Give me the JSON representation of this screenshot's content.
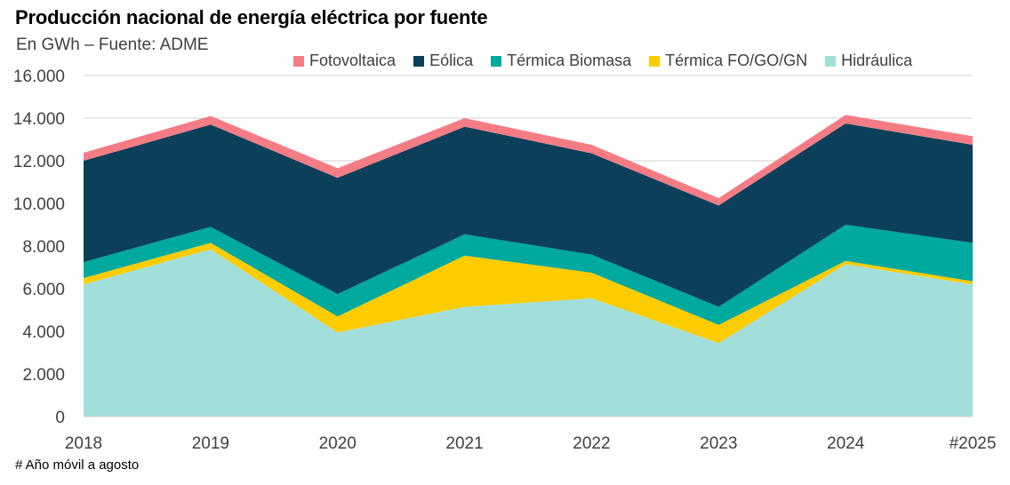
{
  "title": "Producción nacional de energía eléctrica por fuente",
  "subtitle": "En GWh – Fuente: ADME",
  "footnote": "# Año móvil a agosto",
  "chart_data": {
    "type": "area",
    "stacked": true,
    "title": "Producción nacional de energía eléctrica por fuente",
    "subtitle": "En GWh – Fuente: ADME",
    "xlabel": "",
    "ylabel": "",
    "categories": [
      "2018",
      "2019",
      "2020",
      "2021",
      "2022",
      "2023",
      "2024",
      "#2025"
    ],
    "ylim": [
      0,
      16000
    ],
    "yticks": [
      0,
      2000,
      4000,
      6000,
      8000,
      10000,
      12000,
      14000,
      16000
    ],
    "ytick_labels": [
      "0",
      "2.000",
      "4.000",
      "6.000",
      "8.000",
      "10.000",
      "12.000",
      "14.000",
      "16.000"
    ],
    "grid": "horizontal",
    "legend_position": "top-right",
    "stack_order_bottom_to_top": [
      "Hidráulica",
      "Térmica FO/GO/GN",
      "Térmica Biomasa",
      "Eólica",
      "Fotovoltaica"
    ],
    "series": [
      {
        "name": "Hidráulica",
        "color": "#A3DFDA",
        "values": [
          6200,
          7850,
          3950,
          5150,
          5550,
          3450,
          7150,
          6200
        ]
      },
      {
        "name": "Térmica FO/GO/GN",
        "color": "#FFCC00",
        "values": [
          300,
          300,
          750,
          2400,
          1200,
          850,
          150,
          150
        ]
      },
      {
        "name": "Térmica Biomasa",
        "color": "#00A99D",
        "values": [
          750,
          750,
          1050,
          1000,
          850,
          850,
          1700,
          1800
        ]
      },
      {
        "name": "Eólica",
        "color": "#0B3F5A",
        "values": [
          4750,
          4800,
          5450,
          5050,
          4750,
          4750,
          4750,
          4600
        ]
      },
      {
        "name": "Fotovoltaica",
        "color": "#F47C85",
        "values": [
          375,
          400,
          450,
          400,
          400,
          350,
          400,
          400
        ]
      }
    ],
    "legend": [
      "Fotovoltaica",
      "Eólica",
      "Térmica Biomasa",
      "Térmica FO/GO/GN",
      "Hidráulica"
    ],
    "annotations": [
      "# Año móvil a agosto"
    ]
  }
}
